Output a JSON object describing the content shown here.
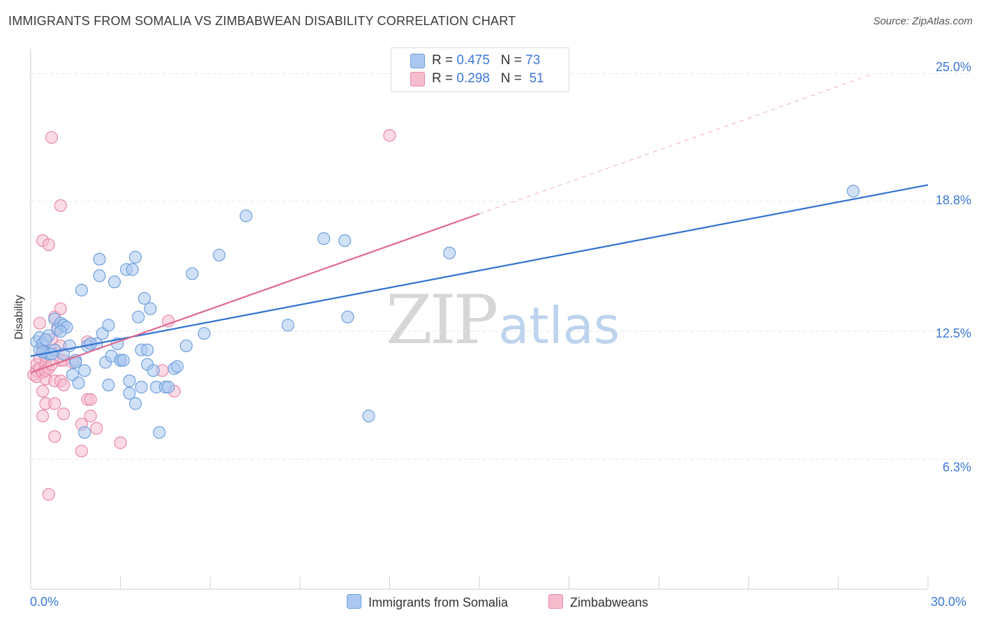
{
  "title": "IMMIGRANTS FROM SOMALIA VS ZIMBABWEAN DISABILITY CORRELATION CHART",
  "source": "Source: ZipAtlas.com",
  "watermark": {
    "zip": "ZIP",
    "atlas": "atlas"
  },
  "legend": {
    "somalia": {
      "r_label": "R =",
      "r_value": "0.475",
      "n_label": "N =",
      "n_value": "73"
    },
    "zimbabwe": {
      "r_label": "R =",
      "r_value": "0.298",
      "n_label": "N =",
      "n_value": "51"
    }
  },
  "colors": {
    "somalia_fill": "#aac8f0",
    "somalia_stroke": "#6f9fdc",
    "somalia_line": "#2f72d0",
    "zimbabwe_fill": "#f5bccd",
    "zimbabwe_stroke": "#e88aa8",
    "zimbabwe_line": "#e06a92",
    "tick_text": "#3b78d8",
    "grid": "#e6e6e6"
  },
  "chart_data": {
    "type": "scatter",
    "title": "IMMIGRANTS FROM SOMALIA VS ZIMBABWEAN DISABILITY CORRELATION CHART",
    "xlabel": "",
    "ylabel": "Disability",
    "xlim": [
      0,
      30
    ],
    "ylim": [
      0,
      26.2
    ],
    "x_tick_labels": [
      "0.0%",
      "30.0%"
    ],
    "y_ticks": [
      6.3,
      12.5,
      18.8,
      25.0
    ],
    "y_tick_labels": [
      "6.3%",
      "12.5%",
      "18.8%",
      "25.0%"
    ],
    "grid": true,
    "legend_position": "top-center",
    "series": [
      {
        "name": "Immigrants from Somalia",
        "points": [
          [
            0.2,
            12.0
          ],
          [
            0.3,
            11.6
          ],
          [
            0.3,
            12.2
          ],
          [
            0.4,
            11.9
          ],
          [
            0.5,
            11.5
          ],
          [
            0.6,
            12.3
          ],
          [
            0.6,
            11.4
          ],
          [
            0.8,
            13.1
          ],
          [
            0.8,
            11.6
          ],
          [
            0.9,
            12.6
          ],
          [
            1.0,
            12.9
          ],
          [
            1.1,
            12.8
          ],
          [
            1.1,
            11.4
          ],
          [
            1.2,
            12.7
          ],
          [
            1.3,
            11.8
          ],
          [
            1.4,
            10.4
          ],
          [
            1.5,
            11.1
          ],
          [
            1.6,
            10.0
          ],
          [
            1.7,
            14.5
          ],
          [
            1.8,
            7.6
          ],
          [
            1.8,
            10.6
          ],
          [
            1.9,
            11.8
          ],
          [
            2.2,
            11.9
          ],
          [
            2.3,
            15.2
          ],
          [
            2.3,
            16.0
          ],
          [
            2.4,
            12.4
          ],
          [
            2.5,
            11.0
          ],
          [
            2.6,
            12.8
          ],
          [
            2.6,
            9.9
          ],
          [
            2.7,
            11.3
          ],
          [
            2.8,
            14.9
          ],
          [
            2.9,
            11.9
          ],
          [
            3.0,
            11.1
          ],
          [
            3.0,
            11.1
          ],
          [
            3.2,
            15.5
          ],
          [
            3.3,
            9.5
          ],
          [
            3.3,
            10.1
          ],
          [
            3.4,
            15.5
          ],
          [
            3.5,
            16.1
          ],
          [
            3.5,
            9.0
          ],
          [
            3.6,
            13.2
          ],
          [
            3.7,
            11.6
          ],
          [
            3.7,
            9.8
          ],
          [
            3.8,
            14.1
          ],
          [
            3.9,
            10.9
          ],
          [
            3.9,
            11.6
          ],
          [
            4.0,
            13.6
          ],
          [
            4.1,
            10.6
          ],
          [
            4.2,
            9.8
          ],
          [
            4.3,
            7.6
          ],
          [
            4.5,
            9.8
          ],
          [
            4.6,
            9.8
          ],
          [
            4.8,
            10.7
          ],
          [
            5.2,
            11.8
          ],
          [
            5.4,
            15.3
          ],
          [
            5.8,
            12.4
          ],
          [
            6.3,
            16.2
          ],
          [
            7.2,
            18.1
          ],
          [
            8.6,
            12.8
          ],
          [
            9.8,
            17.0
          ],
          [
            10.5,
            16.9
          ],
          [
            10.6,
            13.2
          ],
          [
            11.3,
            8.4
          ],
          [
            14.0,
            16.3
          ],
          [
            27.5,
            19.3
          ],
          [
            0.4,
            11.5
          ],
          [
            1.0,
            12.5
          ],
          [
            0.7,
            11.4
          ],
          [
            2.0,
            11.9
          ],
          [
            4.9,
            10.8
          ],
          [
            0.5,
            12.1
          ],
          [
            1.5,
            11.0
          ],
          [
            3.1,
            11.1
          ]
        ]
      },
      {
        "name": "Zimbabweans",
        "points": [
          [
            0.1,
            10.4
          ],
          [
            0.2,
            10.6
          ],
          [
            0.2,
            10.3
          ],
          [
            0.2,
            10.9
          ],
          [
            0.3,
            11.2
          ],
          [
            0.3,
            10.7
          ],
          [
            0.3,
            12.9
          ],
          [
            0.4,
            10.5
          ],
          [
            0.4,
            9.6
          ],
          [
            0.4,
            8.4
          ],
          [
            0.4,
            16.9
          ],
          [
            0.4,
            11.6
          ],
          [
            0.5,
            10.6
          ],
          [
            0.5,
            10.2
          ],
          [
            0.5,
            10.9
          ],
          [
            0.5,
            11.3
          ],
          [
            0.5,
            10.6
          ],
          [
            0.5,
            9.0
          ],
          [
            0.6,
            16.7
          ],
          [
            0.6,
            10.7
          ],
          [
            0.6,
            4.6
          ],
          [
            0.7,
            21.9
          ],
          [
            0.7,
            12.1
          ],
          [
            0.7,
            10.9
          ],
          [
            0.8,
            10.1
          ],
          [
            0.8,
            9.0
          ],
          [
            0.8,
            7.4
          ],
          [
            0.8,
            11.6
          ],
          [
            0.8,
            13.2
          ],
          [
            0.9,
            12.7
          ],
          [
            1.0,
            18.6
          ],
          [
            1.0,
            11.8
          ],
          [
            1.0,
            11.1
          ],
          [
            1.0,
            10.1
          ],
          [
            1.0,
            13.6
          ],
          [
            1.1,
            11.1
          ],
          [
            1.1,
            9.9
          ],
          [
            1.1,
            8.5
          ],
          [
            1.4,
            11.0
          ],
          [
            1.7,
            8.0
          ],
          [
            1.7,
            6.7
          ],
          [
            1.9,
            12.0
          ],
          [
            1.9,
            9.2
          ],
          [
            2.0,
            9.2
          ],
          [
            2.0,
            8.4
          ],
          [
            2.2,
            7.8
          ],
          [
            3.0,
            7.1
          ],
          [
            4.4,
            10.6
          ],
          [
            4.6,
            13.0
          ],
          [
            4.8,
            9.6
          ],
          [
            12.0,
            22.0
          ]
        ]
      }
    ],
    "trendlines": [
      {
        "series": "Immigrants from Somalia",
        "x": [
          0,
          30
        ],
        "y": [
          11.3,
          19.6
        ],
        "style": "solid"
      },
      {
        "series": "Zimbabweans",
        "x": [
          0,
          15
        ],
        "y": [
          10.5,
          18.2
        ],
        "style": "solid"
      },
      {
        "series": "Zimbabweans",
        "x": [
          15,
          28.2
        ],
        "y": [
          18.2,
          25.0
        ],
        "style": "dashed"
      }
    ]
  }
}
